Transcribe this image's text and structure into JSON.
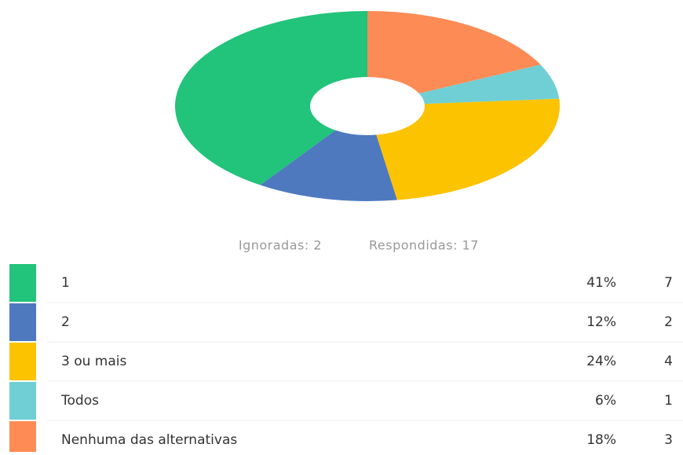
{
  "chart_data": {
    "type": "donut",
    "categories": [
      "1",
      "2",
      "3 ou mais",
      "Todos",
      "Nenhuma das alternativas"
    ],
    "values": [
      41,
      12,
      24,
      6,
      18
    ],
    "value_labels": [
      "41%",
      "12%",
      "24%",
      "6%",
      "18%"
    ],
    "counts": [
      7,
      2,
      4,
      1,
      3
    ],
    "colors": [
      "#22c37a",
      "#4e79bf",
      "#fcc300",
      "#70cfd4",
      "#fd8b55"
    ],
    "summary": [
      "Ignoradas: 2",
      "Respondidas: 17"
    ]
  }
}
